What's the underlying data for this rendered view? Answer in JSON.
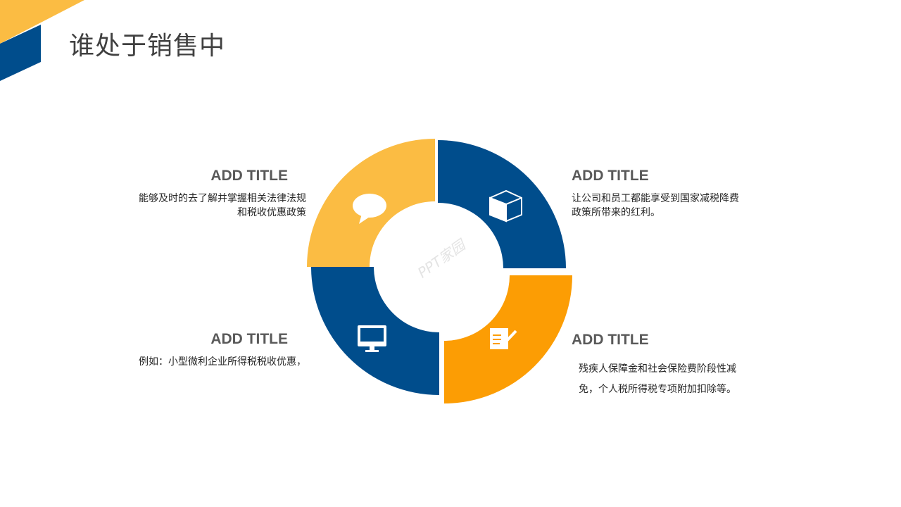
{
  "title": "谁处于销售中",
  "watermark": "PPT家园",
  "colors": {
    "yellow": "#FBBC43",
    "blue": "#004D8C",
    "orange": "#FC9D04",
    "text": "#595959"
  },
  "items": [
    {
      "title": "ADD TITLE",
      "desc": "能够及时的去了解并掌握相关法律法规和税收优惠政策",
      "icon": "speech-bubble-icon",
      "color": "#FBBC43"
    },
    {
      "title": "ADD TITLE",
      "desc": "让公司和员工都能享受到国家减税降费政策所带来的红利。",
      "icon": "cube-icon",
      "color": "#004D8C"
    },
    {
      "title": "ADD TITLE",
      "desc": "残疾人保障金和社会保险费阶段性减免，个人税所得税专项附加扣除等。",
      "icon": "notepad-pencil-icon",
      "color": "#FC9D04"
    },
    {
      "title": "ADD TITLE",
      "desc": "例如：小型微利企业所得税税收优惠，",
      "icon": "monitor-icon",
      "color": "#004D8C"
    }
  ]
}
